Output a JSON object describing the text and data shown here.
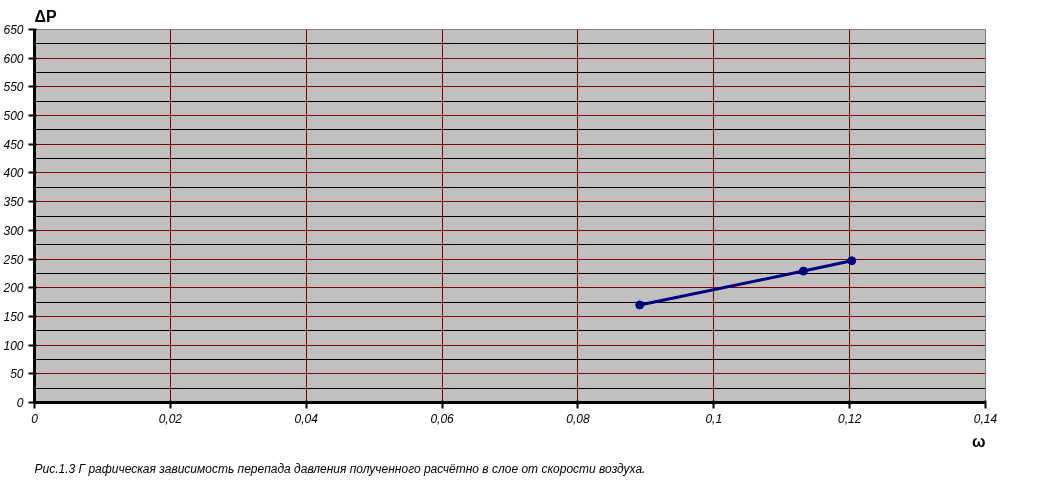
{
  "chart_data": {
    "type": "line",
    "ylabel": "ΔP",
    "xlabel": "ω",
    "annotations": [
      "Рис.1.3 Г рафическая  зависимость  перепада  давления  полученного   расчётно  в слое  от скорости  воздуха."
    ],
    "x": [
      0.0891,
      0.1132,
      0.1203
    ],
    "series": [
      {
        "color": "#000080",
        "values": [
          170,
          229,
          247
        ]
      }
    ],
    "marker": "circle",
    "xlim": [
      0,
      0.14
    ],
    "xticks": [
      0,
      {
        "value": 0.02,
        "label": "0,02"
      },
      {
        "value": 0.04,
        "label": "0,04"
      },
      {
        "value": 0.06,
        "label": "0,06"
      },
      {
        "value": 0.08,
        "label": "0,08"
      },
      {
        "value": 0.1,
        "label": "0,1"
      },
      {
        "value": 0.12,
        "label": "0,12"
      },
      {
        "value": 0.14,
        "label": "0,14"
      }
    ],
    "ylim": [
      0,
      650
    ],
    "yticks": [
      0,
      50,
      100,
      150,
      200,
      250,
      300,
      350,
      400,
      450,
      500,
      550,
      600,
      650
    ],
    "grid": true
  }
}
